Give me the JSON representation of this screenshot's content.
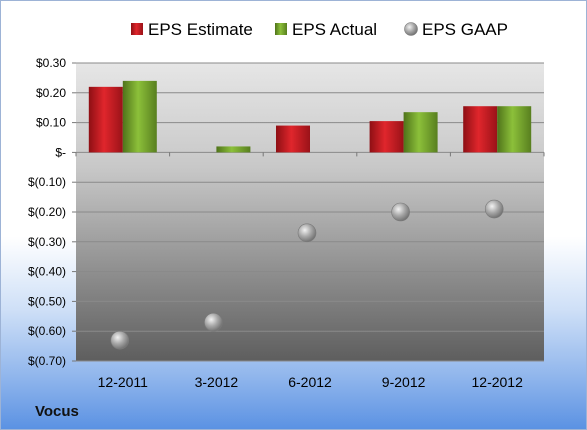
{
  "brand": "Vocus",
  "colors": {
    "estimate": "#c0161c",
    "actual": "#6e9a26",
    "gaap": "#9a9a9a"
  },
  "chart_data": {
    "type": "bar",
    "categories": [
      "12-2011",
      "3-2012",
      "6-2012",
      "9-2012",
      "12-2012"
    ],
    "series": [
      {
        "name": "EPS Estimate",
        "kind": "bar",
        "values": [
          0.22,
          null,
          0.09,
          0.105,
          0.155
        ]
      },
      {
        "name": "EPS Actual",
        "kind": "bar",
        "values": [
          0.24,
          0.02,
          null,
          0.135,
          0.155
        ]
      },
      {
        "name": "EPS GAAP",
        "kind": "scatter",
        "values": [
          -0.63,
          -0.57,
          -0.27,
          -0.2,
          -0.19
        ]
      }
    ],
    "y_ticks": [
      0.3,
      0.2,
      0.1,
      0,
      -0.1,
      -0.2,
      -0.3,
      -0.4,
      -0.5,
      -0.6,
      -0.7
    ],
    "y_tick_labels": [
      "$0.30",
      "$0.20",
      "$0.10",
      "$-",
      "$(0.10)",
      "$(0.20)",
      "$(0.30)",
      "$(0.40)",
      "$(0.50)",
      "$(0.60)",
      "$(0.70)"
    ],
    "ylim": [
      -0.7,
      0.3
    ],
    "grid": true,
    "legend_position": "top"
  }
}
